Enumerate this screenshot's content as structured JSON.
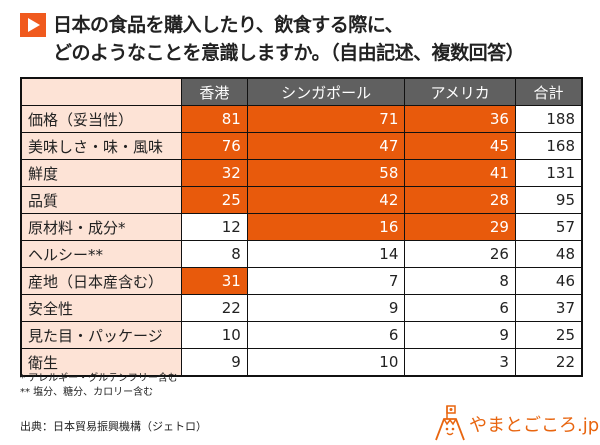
{
  "title": {
    "line1": "日本の食品を購入したり、飲食する際に、",
    "line2": "どのようなことを意識しますか。（自由記述、複数回答）"
  },
  "colors": {
    "highlight": "#e85a0c",
    "label_bg": "#fde3d6",
    "header_bg": "#606060",
    "accent": "#f05a1e"
  },
  "chart_data": {
    "type": "table",
    "columns": [
      "",
      "香港",
      "シンガポール",
      "アメリカ",
      "合計"
    ],
    "rows": [
      {
        "label": "価格（妥当性）",
        "values": [
          81,
          71,
          36,
          188
        ],
        "highlight": [
          true,
          true,
          true,
          false
        ]
      },
      {
        "label": "美味しさ・味・風味",
        "values": [
          76,
          47,
          45,
          168
        ],
        "highlight": [
          true,
          true,
          true,
          false
        ]
      },
      {
        "label": "鮮度",
        "values": [
          32,
          58,
          41,
          131
        ],
        "highlight": [
          true,
          true,
          true,
          false
        ]
      },
      {
        "label": "品質",
        "values": [
          25,
          42,
          28,
          95
        ],
        "highlight": [
          true,
          true,
          true,
          false
        ]
      },
      {
        "label": "原材料・成分*",
        "values": [
          12,
          16,
          29,
          57
        ],
        "highlight": [
          false,
          true,
          true,
          false
        ]
      },
      {
        "label": "ヘルシー**",
        "values": [
          8,
          14,
          26,
          48
        ],
        "highlight": [
          false,
          false,
          false,
          false
        ]
      },
      {
        "label": "産地（日本産含む）",
        "values": [
          31,
          7,
          8,
          46
        ],
        "highlight": [
          true,
          false,
          false,
          false
        ]
      },
      {
        "label": "安全性",
        "values": [
          22,
          9,
          6,
          37
        ],
        "highlight": [
          false,
          false,
          false,
          false
        ]
      },
      {
        "label": "見た目・パッケージ",
        "values": [
          10,
          6,
          9,
          25
        ],
        "highlight": [
          false,
          false,
          false,
          false
        ]
      },
      {
        "label": "衛生",
        "values": [
          9,
          10,
          3,
          22
        ],
        "highlight": [
          false,
          false,
          false,
          false
        ]
      }
    ]
  },
  "notes": [
    "* アレルギー・グルテンフリー含む",
    "** 塩分、糖分、カロリー含む"
  ],
  "source": "出典：日本貿易振興機構（ジェトロ）",
  "logo": {
    "text": "やまとごころ.jp",
    "icon": "mountain-flag-icon"
  }
}
